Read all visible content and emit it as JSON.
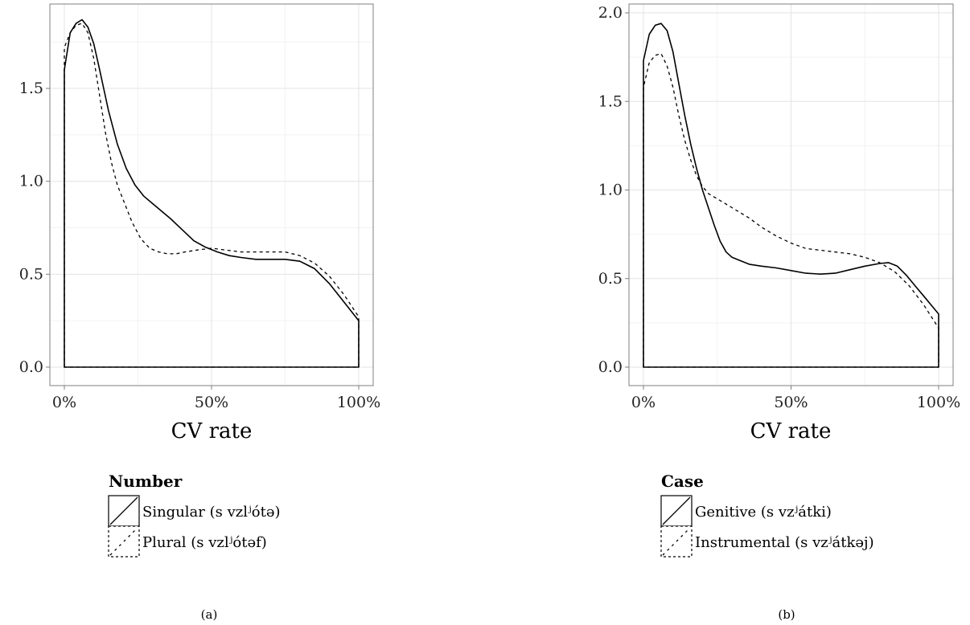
{
  "chart_data": [
    {
      "type": "area",
      "caption": "(a)",
      "xlabel": "CV rate",
      "ylabel": "",
      "xlim": [
        0,
        100
      ],
      "ylim": [
        0,
        1.95
      ],
      "x_ticks": [
        0,
        50,
        100
      ],
      "x_tick_labels": [
        "0%",
        "50%",
        "100%"
      ],
      "y_ticks": [
        0,
        0.5,
        1.0,
        1.5
      ],
      "y_tick_labels": [
        "0.0",
        "0.5",
        "1.0",
        "1.5"
      ],
      "grid": true,
      "legend_placement": "bottom",
      "legend_title": "Number",
      "series": [
        {
          "name": "Singular (s vzlʲótə)",
          "line_style": "solid",
          "x": [
            0,
            2,
            4,
            6,
            8,
            10,
            12,
            15,
            18,
            21,
            24,
            27,
            30,
            33,
            36,
            40,
            44,
            48,
            52,
            56,
            60,
            65,
            70,
            75,
            80,
            85,
            90,
            95,
            100
          ],
          "y": [
            1.6,
            1.8,
            1.85,
            1.87,
            1.83,
            1.74,
            1.6,
            1.38,
            1.2,
            1.07,
            0.98,
            0.92,
            0.88,
            0.84,
            0.8,
            0.74,
            0.68,
            0.645,
            0.62,
            0.6,
            0.59,
            0.58,
            0.58,
            0.58,
            0.57,
            0.53,
            0.45,
            0.35,
            0.25
          ]
        },
        {
          "name": "Plural (s vzlʲótəf)",
          "line_style": "dotted",
          "x": [
            0,
            2,
            4,
            6,
            8,
            10,
            12,
            14,
            16,
            18,
            20,
            23,
            26,
            29,
            32,
            35,
            38,
            41,
            45,
            50,
            55,
            60,
            65,
            70,
            75,
            80,
            85,
            90,
            95,
            100
          ],
          "y": [
            1.72,
            1.8,
            1.84,
            1.85,
            1.8,
            1.66,
            1.46,
            1.26,
            1.1,
            0.98,
            0.9,
            0.78,
            0.69,
            0.64,
            0.62,
            0.61,
            0.61,
            0.62,
            0.63,
            0.64,
            0.63,
            0.62,
            0.62,
            0.62,
            0.62,
            0.6,
            0.56,
            0.49,
            0.39,
            0.27
          ]
        }
      ]
    },
    {
      "type": "area",
      "caption": "(b)",
      "xlabel": "CV rate",
      "ylabel": "",
      "xlim": [
        0,
        100
      ],
      "ylim": [
        0,
        2.0
      ],
      "x_ticks": [
        0,
        50,
        100
      ],
      "x_tick_labels": [
        "0%",
        "50%",
        "100%"
      ],
      "y_ticks": [
        0,
        0.5,
        1.0,
        1.5,
        2.0
      ],
      "y_tick_labels": [
        "0.0",
        "0.5",
        "1.0",
        "1.5",
        "2.0"
      ],
      "grid": true,
      "legend_placement": "bottom",
      "legend_title": "Case",
      "series": [
        {
          "name": "Genitive (s vzʲátki)",
          "line_style": "solid",
          "x": [
            0,
            2,
            4,
            6,
            8,
            10,
            12,
            14,
            16,
            18,
            20,
            22,
            24,
            26,
            28,
            30,
            33,
            36,
            40,
            45,
            50,
            55,
            60,
            65,
            70,
            75,
            80,
            83,
            86,
            89,
            92,
            95,
            100
          ],
          "y": [
            1.73,
            1.88,
            1.93,
            1.94,
            1.9,
            1.78,
            1.6,
            1.42,
            1.26,
            1.12,
            1.0,
            0.9,
            0.8,
            0.71,
            0.65,
            0.62,
            0.6,
            0.58,
            0.57,
            0.56,
            0.545,
            0.53,
            0.525,
            0.53,
            0.55,
            0.57,
            0.585,
            0.59,
            0.57,
            0.52,
            0.46,
            0.4,
            0.3
          ]
        },
        {
          "name": "Instrumental (s vzʲátkəj)",
          "line_style": "dotted",
          "x": [
            0,
            2,
            4,
            6,
            8,
            10,
            12,
            14,
            16,
            18,
            20,
            22,
            24,
            27,
            30,
            33,
            36,
            40,
            45,
            50,
            55,
            60,
            65,
            70,
            75,
            80,
            85,
            90,
            95,
            100
          ],
          "y": [
            1.58,
            1.72,
            1.76,
            1.77,
            1.7,
            1.58,
            1.42,
            1.28,
            1.17,
            1.08,
            1.02,
            0.98,
            0.96,
            0.93,
            0.9,
            0.87,
            0.84,
            0.79,
            0.74,
            0.7,
            0.67,
            0.66,
            0.65,
            0.64,
            0.62,
            0.59,
            0.54,
            0.46,
            0.35,
            0.22
          ]
        }
      ]
    }
  ]
}
